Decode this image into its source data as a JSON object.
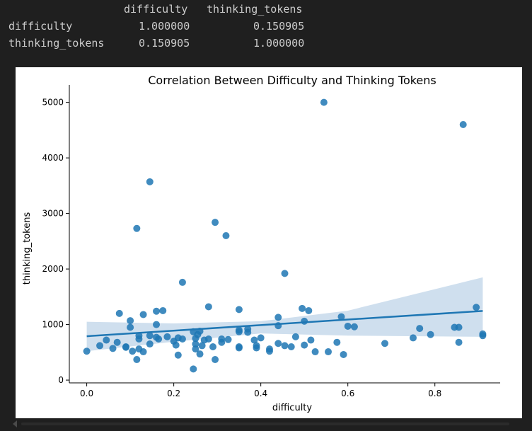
{
  "correlation_table": {
    "columns": [
      "difficulty",
      "thinking_tokens"
    ],
    "rows": [
      {
        "label": "difficulty",
        "values": [
          "1.000000",
          "0.150905"
        ]
      },
      {
        "label": "thinking_tokens",
        "values": [
          "0.150905",
          "1.000000"
        ]
      }
    ]
  },
  "colors": {
    "background": "#1f1f1f",
    "table_text": "#cccccc",
    "point": "#1f77b4",
    "regression_line": "#1f77b4",
    "confidence_band": "#cfdfee"
  },
  "chart_data": {
    "type": "scatter",
    "title": "Correlation Between Difficulty and Thinking Tokens",
    "xlabel": "difficulty",
    "ylabel": "thinking_tokens",
    "xlim": [
      -0.04,
      0.95
    ],
    "ylim": [
      -50,
      5250
    ],
    "x_ticks": [
      0.0,
      0.2,
      0.4,
      0.6,
      0.8
    ],
    "x_tick_labels": [
      "0.0",
      "0.2",
      "0.4",
      "0.6",
      "0.8"
    ],
    "y_ticks": [
      0,
      1000,
      2000,
      3000,
      4000,
      5000
    ],
    "y_tick_labels": [
      "0",
      "1000",
      "2000",
      "3000",
      "4000",
      "5000"
    ],
    "grid": false,
    "regression": {
      "x_range": [
        0.0,
        0.91
      ],
      "y_start": 790,
      "y_end": 1245,
      "ci_lower": [
        [
          0.0,
          520
        ],
        [
          0.2,
          690
        ],
        [
          0.4,
          840
        ],
        [
          0.6,
          800
        ],
        [
          0.91,
          780
        ]
      ],
      "ci_upper": [
        [
          0.0,
          1050
        ],
        [
          0.2,
          1020
        ],
        [
          0.4,
          1060
        ],
        [
          0.6,
          1250
        ],
        [
          0.91,
          1850
        ]
      ]
    },
    "points": [
      [
        0.0,
        520
      ],
      [
        0.03,
        620
      ],
      [
        0.045,
        720
      ],
      [
        0.06,
        570
      ],
      [
        0.075,
        1200
      ],
      [
        0.07,
        680
      ],
      [
        0.09,
        600
      ],
      [
        0.09,
        590
      ],
      [
        0.1,
        950
      ],
      [
        0.1,
        1070
      ],
      [
        0.105,
        520
      ],
      [
        0.115,
        370
      ],
      [
        0.115,
        2730
      ],
      [
        0.12,
        740
      ],
      [
        0.12,
        560
      ],
      [
        0.12,
        800
      ],
      [
        0.13,
        1180
      ],
      [
        0.13,
        510
      ],
      [
        0.145,
        3570
      ],
      [
        0.145,
        800
      ],
      [
        0.145,
        650
      ],
      [
        0.16,
        1240
      ],
      [
        0.16,
        1000
      ],
      [
        0.16,
        770
      ],
      [
        0.165,
        740
      ],
      [
        0.175,
        1250
      ],
      [
        0.185,
        780
      ],
      [
        0.2,
        700
      ],
      [
        0.205,
        630
      ],
      [
        0.21,
        450
      ],
      [
        0.21,
        760
      ],
      [
        0.22,
        1760
      ],
      [
        0.22,
        740
      ],
      [
        0.245,
        200
      ],
      [
        0.245,
        870
      ],
      [
        0.25,
        750
      ],
      [
        0.25,
        650
      ],
      [
        0.25,
        560
      ],
      [
        0.255,
        820
      ],
      [
        0.26,
        880
      ],
      [
        0.26,
        470
      ],
      [
        0.265,
        620
      ],
      [
        0.27,
        720
      ],
      [
        0.28,
        1320
      ],
      [
        0.28,
        740
      ],
      [
        0.29,
        600
      ],
      [
        0.295,
        2840
      ],
      [
        0.295,
        370
      ],
      [
        0.31,
        740
      ],
      [
        0.31,
        680
      ],
      [
        0.32,
        2600
      ],
      [
        0.325,
        730
      ],
      [
        0.35,
        1270
      ],
      [
        0.35,
        900
      ],
      [
        0.35,
        870
      ],
      [
        0.35,
        600
      ],
      [
        0.35,
        580
      ],
      [
        0.37,
        920
      ],
      [
        0.37,
        860
      ],
      [
        0.385,
        720
      ],
      [
        0.39,
        620
      ],
      [
        0.39,
        580
      ],
      [
        0.4,
        760
      ],
      [
        0.42,
        560
      ],
      [
        0.42,
        520
      ],
      [
        0.44,
        1130
      ],
      [
        0.44,
        980
      ],
      [
        0.44,
        660
      ],
      [
        0.455,
        1920
      ],
      [
        0.455,
        620
      ],
      [
        0.47,
        600
      ],
      [
        0.48,
        780
      ],
      [
        0.495,
        1290
      ],
      [
        0.5,
        1060
      ],
      [
        0.5,
        630
      ],
      [
        0.51,
        1250
      ],
      [
        0.515,
        720
      ],
      [
        0.525,
        510
      ],
      [
        0.545,
        5000
      ],
      [
        0.555,
        510
      ],
      [
        0.575,
        680
      ],
      [
        0.585,
        1140
      ],
      [
        0.59,
        460
      ],
      [
        0.6,
        970
      ],
      [
        0.615,
        960
      ],
      [
        0.685,
        660
      ],
      [
        0.75,
        760
      ],
      [
        0.765,
        930
      ],
      [
        0.79,
        820
      ],
      [
        0.845,
        950
      ],
      [
        0.855,
        680
      ],
      [
        0.855,
        950
      ],
      [
        0.865,
        4600
      ],
      [
        0.895,
        1310
      ],
      [
        0.91,
        830
      ],
      [
        0.91,
        800
      ]
    ]
  }
}
